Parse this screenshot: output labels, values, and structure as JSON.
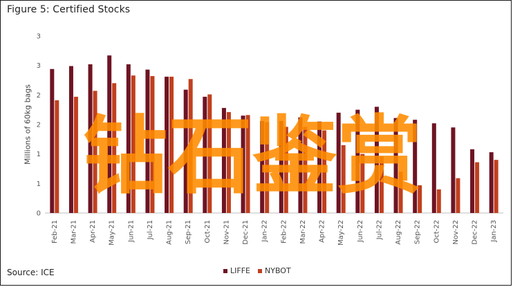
{
  "chart_data": {
    "type": "bar",
    "title": "Figure 5: Certified Stocks",
    "ylabel": "Millions of 60kg bags",
    "source": "Source: ICE",
    "y_tick_labels": [
      "0",
      "1",
      "1",
      "2",
      "2",
      "3",
      "3"
    ],
    "ylim": [
      0,
      3
    ],
    "grid": false,
    "legend_position": "bottom-center",
    "categories": [
      "Feb-21",
      "Mar-21",
      "Apr-21",
      "May-21",
      "Jun-21",
      "Jul-21",
      "Aug-21",
      "Sep-21",
      "Oct-21",
      "Nov-21",
      "Dec-21",
      "Jan-22",
      "Feb-22",
      "Mar-22",
      "Apr-22",
      "May-22",
      "Jun-22",
      "Jul-22",
      "Aug-22",
      "Sep-22",
      "Oct-22",
      "Nov-22",
      "Dec-22",
      "Jan-23"
    ],
    "series": [
      {
        "name": "LIFFE",
        "color": "#6e1423",
        "values": [
          2.44,
          2.49,
          2.52,
          2.67,
          2.52,
          2.43,
          2.31,
          2.09,
          1.97,
          1.78,
          1.65,
          1.56,
          1.56,
          1.62,
          1.55,
          1.7,
          1.75,
          1.8,
          1.61,
          1.58,
          1.52,
          1.45,
          1.08,
          1.03
        ]
      },
      {
        "name": "NYBOT",
        "color": "#c0401f",
        "values": [
          1.91,
          1.97,
          2.07,
          2.2,
          2.33,
          2.32,
          2.31,
          2.27,
          2.01,
          1.71,
          1.66,
          1.54,
          1.46,
          1.46,
          1.4,
          1.15,
          1.0,
          0.96,
          0.7,
          0.47,
          0.4,
          0.59,
          0.86,
          0.9
        ]
      }
    ]
  },
  "watermark": {
    "text": "钻石鉴赏",
    "color": "#ff8c00"
  }
}
